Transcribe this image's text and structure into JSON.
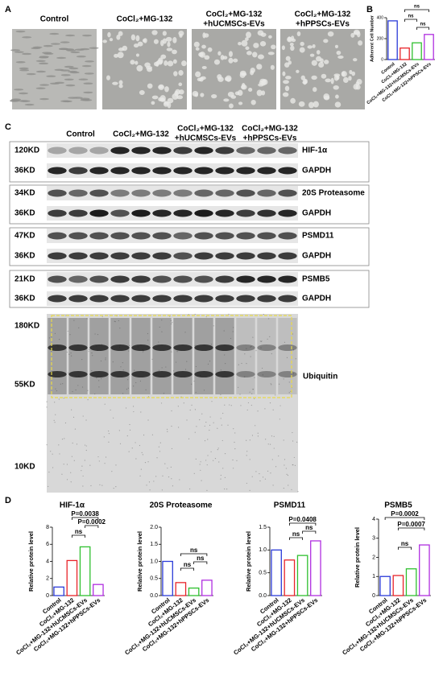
{
  "panels": [
    "A",
    "B",
    "C",
    "D"
  ],
  "micrograph_labels": [
    [
      "Control"
    ],
    [
      "CoCl₂+MG-132"
    ],
    [
      "CoCl₂+MG-132",
      "+hUCMSCs-EVs"
    ],
    [
      "CoCl₂+MG-132",
      "+hPPSCs-EVs"
    ]
  ],
  "blot": {
    "group_labels": [
      [
        "Control"
      ],
      [
        "CoCl₂+MG-132"
      ],
      [
        "CoCl₂+MG-132",
        "+hUCMSCs-EVs"
      ],
      [
        "CoCl₂+MG-132",
        "+hPPSCs-EVs"
      ]
    ],
    "rows": [
      {
        "size": "120KD",
        "protein": "HIF-1α"
      },
      {
        "size": "36KD",
        "protein": "GAPDH"
      },
      {
        "size": "34KD",
        "protein": "20S Proteasome"
      },
      {
        "size": "36KD",
        "protein": "GAPDH"
      },
      {
        "size": "47KD",
        "protein": "PSMD11"
      },
      {
        "size": "36KD",
        "protein": "GAPDH"
      },
      {
        "size": "21KD",
        "protein": "PSMB5"
      },
      {
        "size": "36KD",
        "protein": "GAPDH"
      }
    ],
    "ubiquitin": {
      "sizes": [
        "180KD",
        "55KD",
        "10KD"
      ],
      "protein": "Ubiquitin"
    }
  },
  "chart_data": [
    {
      "type": "bar",
      "ylabel": "Adherent Cell Number",
      "categories": [
        "Control",
        "CoCl₂+MG-132",
        "CoCl₂+MG-132+hUCMSCs-EVs",
        "CoCl₂+MG-132+hPPSCs-EVs"
      ],
      "values": [
        370,
        110,
        160,
        240
      ],
      "colors": [
        "#2b3bd8",
        "#e8242a",
        "#2fc02f",
        "#b02fe0"
      ],
      "ylim": [
        0,
        400
      ],
      "yticks": [
        0,
        200,
        400
      ],
      "annotations": [
        "ns",
        "ns",
        "ns"
      ]
    },
    {
      "type": "bar",
      "title": "HIF-1α",
      "ylabel": "Relative protein level",
      "categories": [
        "Control",
        "CoCl₂+MG-132",
        "CoCl₂+MG-132+hUCMSCs-EVs",
        "CoCl₂+MG-132+hPPSCs-EVs"
      ],
      "values": [
        1.0,
        4.1,
        5.7,
        1.3
      ],
      "colors": [
        "#2b3bd8",
        "#e8242a",
        "#2fc02f",
        "#b02fe0"
      ],
      "ylim": [
        0,
        8
      ],
      "yticks": [
        0,
        2,
        4,
        6,
        8
      ],
      "annotations": [
        "P=0.0038",
        "P=0.0002",
        "ns"
      ]
    },
    {
      "type": "bar",
      "title": "20S Proteasome",
      "ylabel": "Relative protein level",
      "categories": [
        "Control",
        "CoCl₂+MG-132",
        "CoCl₂+MG-132+hUCMSCs-EVs",
        "CoCl₂+MG-132+hPPSCs-EVs"
      ],
      "values": [
        1.0,
        0.38,
        0.22,
        0.45
      ],
      "colors": [
        "#2b3bd8",
        "#e8242a",
        "#2fc02f",
        "#b02fe0"
      ],
      "ylim": [
        0,
        2
      ],
      "yticks": [
        {
          "value": 0,
          "label": "0.0"
        },
        0.5,
        {
          "value": 1,
          "label": "1.0"
        },
        1.5,
        {
          "value": 2,
          "label": "2.0"
        }
      ],
      "annotations": [
        "ns",
        "ns",
        "ns"
      ]
    },
    {
      "type": "bar",
      "title": "PSMD11",
      "ylabel": "Relative protein level",
      "categories": [
        "Control",
        "CoCl₂+MG-132",
        "CoCl₂+MG-132+hUCMSCs-EVs",
        "CoCl₂+MG-132+hPPSCs-EVs"
      ],
      "values": [
        1.0,
        0.78,
        0.88,
        1.2
      ],
      "colors": [
        "#2b3bd8",
        "#e8242a",
        "#2fc02f",
        "#b02fe0"
      ],
      "ylim": [
        0,
        1.5
      ],
      "yticks": [
        {
          "value": 0,
          "label": "0.0"
        },
        0.5,
        {
          "value": 1,
          "label": "1.0"
        },
        1.5
      ],
      "annotations": [
        "P=0.0408",
        "ns",
        "ns"
      ]
    },
    {
      "type": "bar",
      "title": "PSMB5",
      "ylabel": "Relative protein level",
      "categories": [
        "Control",
        "CoCl₂+MG-132",
        "CoCl₂+MG-132+hUCMSCs-EVs",
        "CoCl₂+MG-132+hPPSCs-EVs"
      ],
      "values": [
        1.0,
        1.05,
        1.4,
        2.65
      ],
      "colors": [
        "#2b3bd8",
        "#e8242a",
        "#2fc02f",
        "#b02fe0"
      ],
      "ylim": [
        0,
        4
      ],
      "yticks": [
        0,
        1,
        2,
        3,
        4
      ],
      "annotations": [
        "P=0.0002",
        "P=0.0007",
        "ns"
      ]
    }
  ]
}
